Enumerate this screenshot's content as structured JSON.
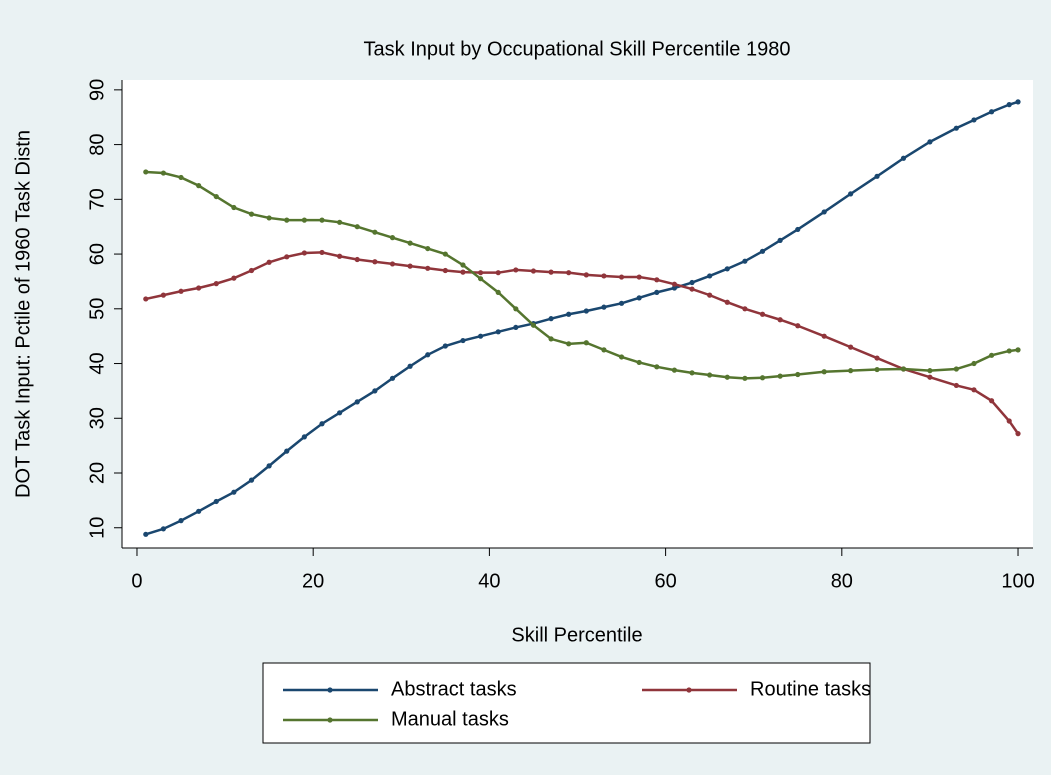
{
  "chart_data": {
    "type": "line",
    "title": "Task Input by Occupational Skill Percentile 1980",
    "x_label": "Skill Percentile",
    "y_label": "DOT Task Input: Pctile of 1960 Task Distn",
    "x": [
      1,
      3,
      5,
      7,
      9,
      11,
      13,
      15,
      17,
      19,
      21,
      23,
      25,
      27,
      29,
      31,
      33,
      35,
      37,
      39,
      41,
      43,
      45,
      47,
      49,
      51,
      53,
      55,
      57,
      59,
      61,
      63,
      65,
      67,
      69,
      71,
      73,
      75,
      78,
      81,
      84,
      87,
      90,
      93,
      95,
      97,
      99,
      100
    ],
    "series": [
      {
        "name": "Abstract tasks",
        "color": "#1a476f",
        "values": [
          8.8,
          9.8,
          11.3,
          13,
          14.8,
          16.5,
          18.7,
          21.3,
          24,
          26.6,
          29,
          31,
          33,
          35,
          37.3,
          39.5,
          41.6,
          43.2,
          44.2,
          45,
          45.8,
          46.6,
          47.3,
          48.2,
          49,
          49.6,
          50.3,
          51,
          52,
          53,
          53.8,
          54.8,
          56,
          57.3,
          58.7,
          60.5,
          62.5,
          64.5,
          67.7,
          71,
          74.2,
          77.5,
          80.5,
          83,
          84.5,
          86,
          87.3,
          87.8
        ]
      },
      {
        "name": "Routine tasks",
        "color": "#90353b",
        "values": [
          51.8,
          52.5,
          53.2,
          53.8,
          54.6,
          55.6,
          57,
          58.5,
          59.5,
          60.2,
          60.3,
          59.6,
          59,
          58.6,
          58.2,
          57.8,
          57.4,
          57,
          56.7,
          56.6,
          56.6,
          57.1,
          56.9,
          56.7,
          56.6,
          56.2,
          56,
          55.8,
          55.8,
          55.3,
          54.5,
          53.6,
          52.5,
          51.2,
          50,
          49,
          48,
          46.9,
          45,
          43,
          41,
          39,
          37.5,
          36,
          35.2,
          33.2,
          29.5,
          27.2
        ]
      },
      {
        "name": "Manual tasks",
        "color": "#55752f",
        "values": [
          75,
          74.8,
          74,
          72.5,
          70.5,
          68.5,
          67.3,
          66.6,
          66.2,
          66.2,
          66.2,
          65.8,
          65,
          64,
          63,
          62,
          61,
          60,
          58,
          55.5,
          53,
          50,
          47,
          44.5,
          43.6,
          43.8,
          42.5,
          41.2,
          40.2,
          39.4,
          38.8,
          38.3,
          37.9,
          37.5,
          37.3,
          37.4,
          37.7,
          38,
          38.5,
          38.7,
          38.9,
          39,
          38.7,
          39,
          40,
          41.5,
          42.3,
          42.5
        ]
      }
    ],
    "xlim": [
      -1.7,
      101.7
    ],
    "xticks": [
      0,
      20,
      40,
      60,
      80,
      100
    ],
    "ylim": [
      6.3,
      91.8
    ],
    "yticks": [
      10,
      20,
      30,
      40,
      50,
      60,
      70,
      80,
      90
    ],
    "grid": false,
    "markers": true
  }
}
